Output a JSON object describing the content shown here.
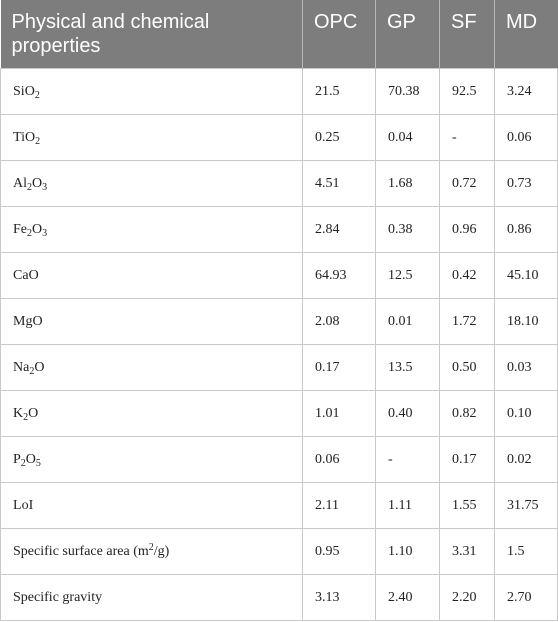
{
  "columns": [
    "Physical and chemical properties",
    "OPC",
    "GP",
    "SF",
    "MD"
  ],
  "rows": [
    {
      "property": "SiO₂",
      "values": [
        "21.5",
        "70.38",
        "92.5",
        "3.24"
      ]
    },
    {
      "property": "TiO₂",
      "values": [
        "0.25",
        "0.04",
        "-",
        "0.06"
      ]
    },
    {
      "property": "Al₂O₃",
      "values": [
        "4.51",
        "1.68",
        "0.72",
        "0.73"
      ]
    },
    {
      "property": "Fe₂O₃",
      "values": [
        "2.84",
        "0.38",
        "0.96",
        "0.86"
      ]
    },
    {
      "property": "CaO",
      "values": [
        "64.93",
        "12.5",
        "0.42",
        "45.10"
      ]
    },
    {
      "property": "MgO",
      "values": [
        "2.08",
        "0.01",
        "1.72",
        "18.10"
      ]
    },
    {
      "property": "Na₂O",
      "values": [
        "0.17",
        "13.5",
        "0.50",
        "0.03"
      ]
    },
    {
      "property": "K₂O",
      "values": [
        "1.01",
        "0.40",
        "0.82",
        "0.10"
      ]
    },
    {
      "property": "P₂O₅",
      "values": [
        "0.06",
        "-",
        "0.17",
        "0.02"
      ]
    },
    {
      "property": "LoI",
      "values": [
        "2.11",
        "1.11",
        "1.55",
        "31.75"
      ]
    },
    {
      "property": "Specific surface area (m²/g)",
      "values": [
        "0.95",
        "1.10",
        "3.31",
        "1.5"
      ]
    },
    {
      "property": "Specific gravity",
      "values": [
        "3.13",
        "2.40",
        "2.20",
        "2.70"
      ]
    }
  ]
}
